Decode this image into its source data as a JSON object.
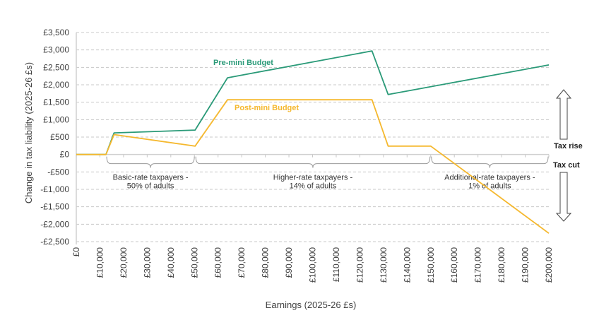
{
  "chart_data": {
    "type": "line",
    "title": "",
    "xlabel": "Earnings (2025-26 £s)",
    "ylabel": "Change in tax liability (2025-26 £s)",
    "xlim": [
      0,
      200000
    ],
    "ylim": [
      -2500,
      3500
    ],
    "grid": true,
    "x_ticks": [
      0,
      10000,
      20000,
      30000,
      40000,
      50000,
      60000,
      70000,
      80000,
      90000,
      100000,
      110000,
      120000,
      130000,
      140000,
      150000,
      160000,
      170000,
      180000,
      190000,
      200000
    ],
    "x_tick_labels": [
      "£0",
      "£10,000",
      "£20,000",
      "£30,000",
      "£40,000",
      "£50,000",
      "£60,000",
      "£70,000",
      "£80,000",
      "£90,000",
      "£100,000",
      "£110,000",
      "£120,000",
      "£130,000",
      "£140,000",
      "£150,000",
      "£160,000",
      "£170,000",
      "£180,000",
      "£190,000",
      "£200,000"
    ],
    "y_ticks": [
      3500,
      3000,
      2500,
      2000,
      1500,
      1000,
      500,
      0,
      -500,
      -1000,
      -1500,
      -2000,
      -2500
    ],
    "y_tick_labels": [
      "£3,500",
      "£3,000",
      "£2,500",
      "£2,000",
      "£1,500",
      "£1,000",
      "£500",
      "£0",
      "-£500",
      "-£1,000",
      "-£1,500",
      "-£2,000",
      "-£2,500"
    ],
    "series": [
      {
        "name": "Pre-mini Budget",
        "color": "#2a9a78",
        "x": [
          0,
          12570,
          16000,
          50270,
          64000,
          125140,
          132000,
          200000
        ],
        "y": [
          0,
          0,
          620,
          700,
          2200,
          2970,
          1720,
          2570
        ]
      },
      {
        "name": "Post-mini Budget",
        "color": "#f5b82e",
        "x": [
          0,
          12570,
          16000,
          50270,
          64000,
          125140,
          132000,
          150000,
          200000
        ],
        "y": [
          0,
          0,
          570,
          240,
          1570,
          1570,
          240,
          240,
          -2260
        ]
      }
    ],
    "annotations": {
      "brackets": [
        {
          "line1": "Basic-rate taxpayers -",
          "line2": "50% of adults",
          "from": 12570,
          "to": 50270
        },
        {
          "line1": "Higher-rate taxpayers -",
          "line2": "14% of adults",
          "from": 50270,
          "to": 150000
        },
        {
          "line1": "Additional-rate taxpayers -",
          "line2": "1% of adults",
          "from": 150000,
          "to": 200000
        }
      ],
      "tax_rise": "Tax rise",
      "tax_cut": "Tax cut"
    }
  }
}
